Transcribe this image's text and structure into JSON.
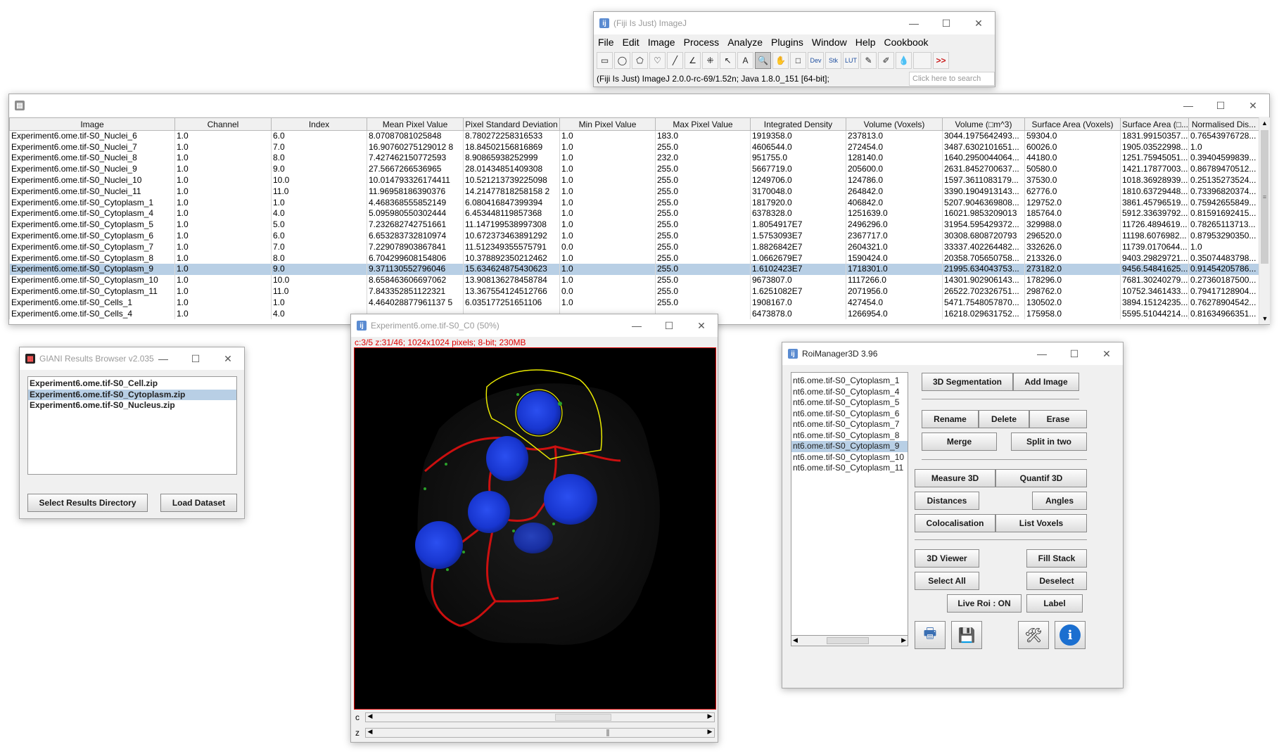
{
  "fiji": {
    "title": "(Fiji Is Just) ImageJ",
    "menu": [
      "File",
      "Edit",
      "Image",
      "Process",
      "Analyze",
      "Plugins",
      "Window",
      "Help",
      "Cookbook"
    ],
    "tools": [
      "▭",
      "◯",
      "⬠",
      "♡",
      "╱",
      "∠",
      "⁜",
      "↖",
      "A",
      "🔍",
      "✋",
      "□",
      "Dev",
      "Stk",
      "LUT",
      "✎",
      "✐",
      "💧",
      " ",
      ">>"
    ],
    "status": "(Fiji Is Just) ImageJ 2.0.0-rc-69/1.52n; Java 1.8.0_151 [64-bit];",
    "search_placeholder": "Click here to search"
  },
  "results": {
    "columns": [
      "Image",
      "Channel",
      "Index",
      "Mean Pixel Value",
      "Pixel Standard Deviation",
      "Min Pixel Value",
      "Max Pixel Value",
      "Integrated Density",
      "Volume (Voxels)",
      "Volume (□m^3)",
      "Surface Area (Voxels)",
      "Surface Area (□...",
      "Normalised Dis..."
    ],
    "rows": [
      [
        "Experiment6.ome.tif-S0_Nuclei_6",
        "1.0",
        "6.0",
        "8.07087081025848",
        "8.780272258316533",
        "1.0",
        "183.0",
        "1919358.0",
        "237813.0",
        "3044.1975642493...",
        "59304.0",
        "1831.99150357...",
        "0.76543976728..."
      ],
      [
        "Experiment6.ome.tif-S0_Nuclei_7",
        "1.0",
        "7.0",
        "16.90760275129012 8",
        "18.84502156816869",
        "1.0",
        "255.0",
        "4606544.0",
        "272454.0",
        "3487.6302101651...",
        "60026.0",
        "1905.03522998...",
        "1.0"
      ],
      [
        "Experiment6.ome.tif-S0_Nuclei_8",
        "1.0",
        "8.0",
        "7.427462150772593",
        "8.90865938252999",
        "1.0",
        "232.0",
        "951755.0",
        "128140.0",
        "1640.2950044064...",
        "44180.0",
        "1251.75945051...",
        "0.39404599839..."
      ],
      [
        "Experiment6.ome.tif-S0_Nuclei_9",
        "1.0",
        "9.0",
        "27.5667266536965",
        "28.01434851409308",
        "1.0",
        "255.0",
        "5667719.0",
        "205600.0",
        "2631.8452700637...",
        "50580.0",
        "1421.17877003...",
        "0.86789470512..."
      ],
      [
        "Experiment6.ome.tif-S0_Nuclei_10",
        "1.0",
        "10.0",
        "10.014793326174411",
        "10.521213739225098",
        "1.0",
        "255.0",
        "1249706.0",
        "124786.0",
        "1597.3611083179...",
        "37530.0",
        "1018.36928939...",
        "0.25135273524..."
      ],
      [
        "Experiment6.ome.tif-S0_Nuclei_11",
        "1.0",
        "11.0",
        "11.96958186390376",
        "14.21477818258158 2",
        "1.0",
        "255.0",
        "3170048.0",
        "264842.0",
        "3390.1904913143...",
        "62776.0",
        "1810.63729448...",
        "0.73396820374..."
      ],
      [
        "Experiment6.ome.tif-S0_Cytoplasm_1",
        "1.0",
        "1.0",
        "4.468368555852149",
        "6.080416847399394",
        "1.0",
        "255.0",
        "1817920.0",
        "406842.0",
        "5207.9046369808...",
        "129752.0",
        "3861.45796519...",
        "0.75942655849..."
      ],
      [
        "Experiment6.ome.tif-S0_Cytoplasm_4",
        "1.0",
        "4.0",
        "5.095980550302444",
        "6.453448119857368",
        "1.0",
        "255.0",
        "6378328.0",
        "1251639.0",
        "16021.9853209013",
        "185764.0",
        "5912.33639792...",
        "0.81591692415..."
      ],
      [
        "Experiment6.ome.tif-S0_Cytoplasm_5",
        "1.0",
        "5.0",
        "7.232682742751661",
        "11.147199538997308",
        "1.0",
        "255.0",
        "1.8054917E7",
        "2496296.0",
        "31954.595429372...",
        "329988.0",
        "11726.4894619...",
        "0.78265113713..."
      ],
      [
        "Experiment6.ome.tif-S0_Cytoplasm_6",
        "1.0",
        "6.0",
        "6.653283732810974",
        "10.672373463891292",
        "1.0",
        "255.0",
        "1.5753093E7",
        "2367717.0",
        "30308.6808720793",
        "296520.0",
        "11198.6076982...",
        "0.87953290350..."
      ],
      [
        "Experiment6.ome.tif-S0_Cytoplasm_7",
        "1.0",
        "7.0",
        "7.229078903867841",
        "11.512349355575791",
        "0.0",
        "255.0",
        "1.8826842E7",
        "2604321.0",
        "33337.402264482...",
        "332626.0",
        "11739.0170644...",
        "1.0"
      ],
      [
        "Experiment6.ome.tif-S0_Cytoplasm_8",
        "1.0",
        "8.0",
        "6.704299608154806",
        "10.378892350212462",
        "1.0",
        "255.0",
        "1.0662679E7",
        "1590424.0",
        "20358.705650758...",
        "213326.0",
        "9403.29829721...",
        "0.35074483798..."
      ],
      [
        "Experiment6.ome.tif-S0_Cytoplasm_9",
        "1.0",
        "9.0",
        "9.371130552796046",
        "15.634624875430623",
        "1.0",
        "255.0",
        "1.6102423E7",
        "1718301.0",
        "21995.634043753...",
        "273182.0",
        "9456.54841625...",
        "0.91454205786..."
      ],
      [
        "Experiment6.ome.tif-S0_Cytoplasm_10",
        "1.0",
        "10.0",
        "8.658463606697062",
        "13.908136278458784",
        "1.0",
        "255.0",
        "9673807.0",
        "1117266.0",
        "14301.902906143...",
        "178296.0",
        "7681.30240279...",
        "0.27360187500..."
      ],
      [
        "Experiment6.ome.tif-S0_Cytoplasm_11",
        "1.0",
        "11.0",
        "7.843352851122321",
        "13.367554124512766",
        "0.0",
        "255.0",
        "1.6251082E7",
        "2071956.0",
        "26522.702326751...",
        "298762.0",
        "10752.3461433...",
        "0.79417128904..."
      ],
      [
        "Experiment6.ome.tif-S0_Cells_1",
        "1.0",
        "1.0",
        "4.464028877961137 5",
        "6.035177251651106",
        "1.0",
        "255.0",
        "1908167.0",
        "427454.0",
        "5471.7548057870...",
        "130502.0",
        "3894.15124235...",
        "0.76278904542..."
      ],
      [
        "Experiment6.ome.tif-S0_Cells_4",
        "1.0",
        "4.0",
        "",
        "",
        "",
        "",
        "6473878.0",
        "1266954.0",
        "16218.029631752...",
        "175958.0",
        "5595.51044214...",
        "0.81634966351..."
      ]
    ],
    "selected_row": 12
  },
  "giani": {
    "title": "GIANI Results Browser v2.035",
    "files": [
      "Experiment6.ome.tif-S0_Cell.zip",
      "Experiment6.ome.tif-S0_Cytoplasm.zip",
      "Experiment6.ome.tif-S0_Nucleus.zip"
    ],
    "selected_file": 1,
    "select_dir_label": "Select Results Directory",
    "load_label": "Load Dataset"
  },
  "image_window": {
    "title": "Experiment6.ome.tif-S0_C0 (50%)",
    "info": "c:3/5 z:31/46; 1024x1024 pixels; 8-bit; 230MB",
    "c_label": "c",
    "z_label": "z",
    "channel_position": 0.6,
    "slice_position": 0.67
  },
  "roi": {
    "title": "RoiManager3D 3.96",
    "items": [
      "nt6.ome.tif-S0_Cytoplasm_1",
      "nt6.ome.tif-S0_Cytoplasm_4",
      "nt6.ome.tif-S0_Cytoplasm_5",
      "nt6.ome.tif-S0_Cytoplasm_6",
      "nt6.ome.tif-S0_Cytoplasm_7",
      "nt6.ome.tif-S0_Cytoplasm_8",
      "nt6.ome.tif-S0_Cytoplasm_9",
      "nt6.ome.tif-S0_Cytoplasm_10",
      "nt6.ome.tif-S0_Cytoplasm_11"
    ],
    "selected_item": 6,
    "buttons": {
      "segmentation": "3D Segmentation",
      "add_image": "Add Image",
      "rename": "Rename",
      "delete": "Delete",
      "erase": "Erase",
      "merge": "Merge",
      "split": "Split in two",
      "measure": "Measure 3D",
      "quantif": "Quantif 3D",
      "distances": "Distances",
      "angles": "Angles",
      "colocalisation": "Colocalisation",
      "list_voxels": "List Voxels",
      "viewer": "3D Viewer",
      "fill_stack": "Fill Stack",
      "select_all": "Select All",
      "deselect": "Deselect",
      "live_roi": "Live Roi : ON",
      "label": "Label"
    }
  },
  "colors": {
    "selection": "#b8cfe5",
    "accent_border": "#2b79d6",
    "info_red": "#e00000",
    "roi_yellow": "#e8e800",
    "membrane_red": "#e01010",
    "nucleus_blue": "#1d3ad6"
  }
}
